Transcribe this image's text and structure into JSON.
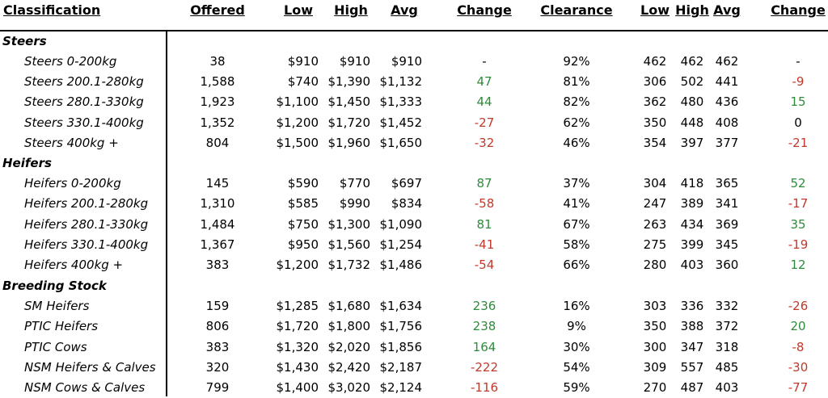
{
  "headers": {
    "classification": "Classification",
    "offered": "Offered",
    "low": "Low",
    "high": "High",
    "avg": "Avg",
    "change": "Change",
    "clearance": "Clearance",
    "low2": "Low",
    "high2": "High",
    "avg2": "Avg",
    "change2": "Change"
  },
  "sections": {
    "steers": "Steers",
    "heifers": "Heifers",
    "breeding": "Breeding Stock"
  },
  "rows": [
    {
      "label": "Steers 0-200kg",
      "offered": "38",
      "low": "$910",
      "high": "$910",
      "avg": "$910",
      "change": "-",
      "clearance": "92%",
      "low2": "462",
      "high2": "462",
      "avg2": "462",
      "change2": "-"
    },
    {
      "label": "Steers 200.1-280kg",
      "offered": "1,588",
      "low": "$740",
      "high": "$1,390",
      "avg": "$1,132",
      "change": "47",
      "clearance": "81%",
      "low2": "306",
      "high2": "502",
      "avg2": "441",
      "change2": "-9"
    },
    {
      "label": "Steers 280.1-330kg",
      "offered": "1,923",
      "low": "$1,100",
      "high": "$1,450",
      "avg": "$1,333",
      "change": "44",
      "clearance": "82%",
      "low2": "362",
      "high2": "480",
      "avg2": "436",
      "change2": "15"
    },
    {
      "label": "Steers 330.1-400kg",
      "offered": "1,352",
      "low": "$1,200",
      "high": "$1,720",
      "avg": "$1,452",
      "change": "-27",
      "clearance": "62%",
      "low2": "350",
      "high2": "448",
      "avg2": "408",
      "change2": "0"
    },
    {
      "label": "Steers 400kg +",
      "offered": "804",
      "low": "$1,500",
      "high": "$1,960",
      "avg": "$1,650",
      "change": "-32",
      "clearance": "46%",
      "low2": "354",
      "high2": "397",
      "avg2": "377",
      "change2": "-21"
    },
    {
      "label": "Heifers 0-200kg",
      "offered": "145",
      "low": "$590",
      "high": "$770",
      "avg": "$697",
      "change": "87",
      "clearance": "37%",
      "low2": "304",
      "high2": "418",
      "avg2": "365",
      "change2": "52"
    },
    {
      "label": "Heifers 200.1-280kg",
      "offered": "1,310",
      "low": "$585",
      "high": "$990",
      "avg": "$834",
      "change": "-58",
      "clearance": "41%",
      "low2": "247",
      "high2": "389",
      "avg2": "341",
      "change2": "-17"
    },
    {
      "label": "Heifers 280.1-330kg",
      "offered": "1,484",
      "low": "$750",
      "high": "$1,300",
      "avg": "$1,090",
      "change": "81",
      "clearance": "67%",
      "low2": "263",
      "high2": "434",
      "avg2": "369",
      "change2": "35"
    },
    {
      "label": "Heifers 330.1-400kg",
      "offered": "1,367",
      "low": "$950",
      "high": "$1,560",
      "avg": "$1,254",
      "change": "-41",
      "clearance": "58%",
      "low2": "275",
      "high2": "399",
      "avg2": "345",
      "change2": "-19"
    },
    {
      "label": "Heifers 400kg +",
      "offered": "383",
      "low": "$1,200",
      "high": "$1,732",
      "avg": "$1,486",
      "change": "-54",
      "clearance": "66%",
      "low2": "280",
      "high2": "403",
      "avg2": "360",
      "change2": "12"
    },
    {
      "label": "SM Heifers",
      "offered": "159",
      "low": "$1,285",
      "high": "$1,680",
      "avg": "$1,634",
      "change": "236",
      "clearance": "16%",
      "low2": "303",
      "high2": "336",
      "avg2": "332",
      "change2": "-26"
    },
    {
      "label": "PTIC Heifers",
      "offered": "806",
      "low": "$1,720",
      "high": "$1,800",
      "avg": "$1,756",
      "change": "238",
      "clearance": "9%",
      "low2": "350",
      "high2": "388",
      "avg2": "372",
      "change2": "20"
    },
    {
      "label": "PTIC Cows",
      "offered": "383",
      "low": "$1,320",
      "high": "$2,020",
      "avg": "$1,856",
      "change": "164",
      "clearance": "30%",
      "low2": "300",
      "high2": "347",
      "avg2": "318",
      "change2": "-8"
    },
    {
      "label": "NSM Heifers & Calves",
      "offered": "320",
      "low": "$1,430",
      "high": "$2,420",
      "avg": "$2,187",
      "change": "-222",
      "clearance": "54%",
      "low2": "309",
      "high2": "557",
      "avg2": "485",
      "change2": "-30"
    },
    {
      "label": "NSM Cows & Calves",
      "offered": "799",
      "low": "$1,400",
      "high": "$3,020",
      "avg": "$2,124",
      "change": "-116",
      "clearance": "59%",
      "low2": "270",
      "high2": "487",
      "avg2": "403",
      "change2": "-77"
    }
  ],
  "colors": {
    "positive": "#2e8b3c",
    "negative": "#c0392b"
  }
}
